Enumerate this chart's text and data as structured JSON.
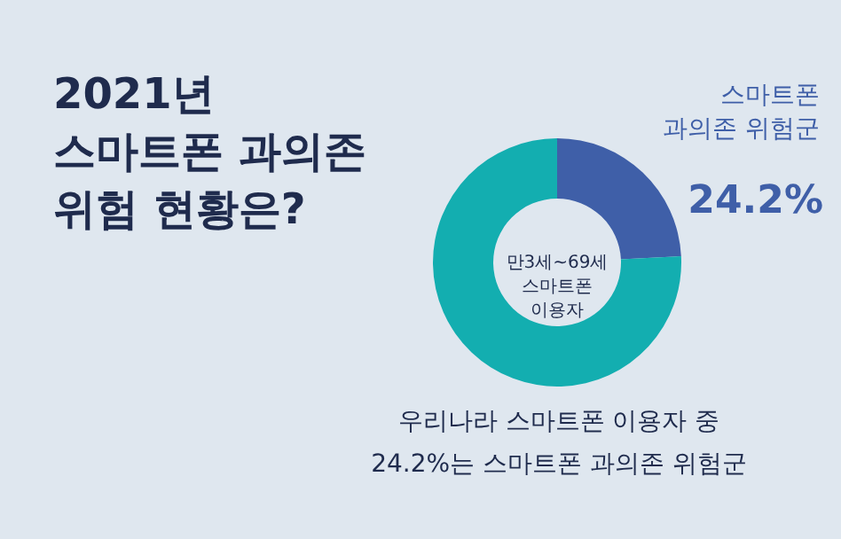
{
  "chart_data": {
    "type": "donut",
    "title": "2021년\n스마트폰 과의존\n위험 현황은?",
    "categories": [
      "스마트폰\n과의존 위험군",
      null
    ],
    "values": [
      24.2,
      75.8
    ],
    "colors": [
      "#3f5fa8",
      "#13aeb0"
    ],
    "value_labels": [
      "24.2%",
      null
    ],
    "annotations": [
      "만3세~69세\n스마트폰\n이용자",
      "우리나라 스마트폰 이용자 중",
      "24.2%는 스마트폰 과의존 위험군"
    ]
  }
}
